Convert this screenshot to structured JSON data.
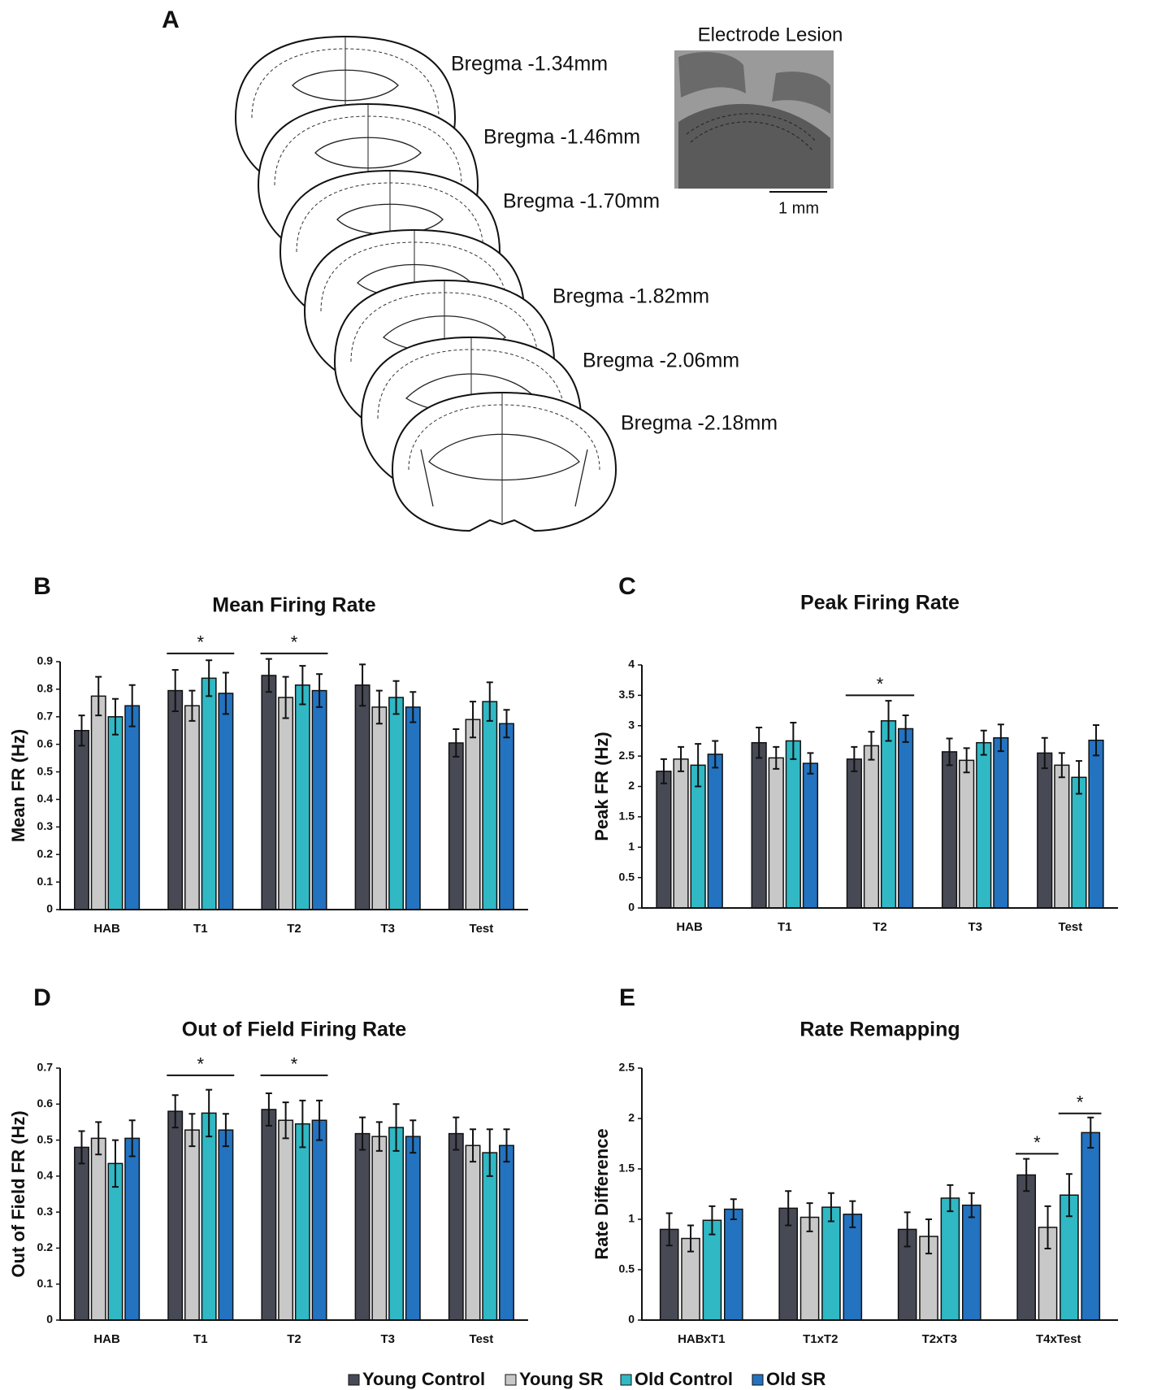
{
  "panel_a": {
    "label": "A",
    "lesion_title": "Electrode Lesion",
    "scale_label": "1 mm",
    "sections": [
      "Bregma -1.34mm",
      "Bregma -1.46mm",
      "Bregma -1.70mm",
      "Bregma -1.82mm",
      "Bregma -2.06mm",
      "Bregma -2.18mm"
    ]
  },
  "chart_data": [
    {
      "type": "bar",
      "panel_label": "B",
      "title": "Mean Firing Rate",
      "y_label": "Mean FR (Hz)",
      "categories": [
        "HAB",
        "T1",
        "T2",
        "T3",
        "Test"
      ],
      "series": [
        {
          "name": "Young Control",
          "color": "#474a55",
          "values": [
            0.65,
            0.795,
            0.85,
            0.815,
            0.605
          ],
          "errors": [
            0.055,
            0.075,
            0.06,
            0.075,
            0.05
          ]
        },
        {
          "name": "Young SR",
          "color": "#c8c8c8",
          "values": [
            0.775,
            0.74,
            0.77,
            0.735,
            0.69
          ],
          "errors": [
            0.07,
            0.055,
            0.075,
            0.06,
            0.065
          ]
        },
        {
          "name": "Old Control",
          "color": "#30b8c4",
          "values": [
            0.7,
            0.84,
            0.815,
            0.77,
            0.755
          ],
          "errors": [
            0.065,
            0.065,
            0.07,
            0.06,
            0.07
          ]
        },
        {
          "name": "Old SR",
          "color": "#2373c0",
          "values": [
            0.74,
            0.785,
            0.795,
            0.735,
            0.675
          ],
          "errors": [
            0.075,
            0.075,
            0.06,
            0.055,
            0.05
          ]
        }
      ],
      "ylim": [
        0,
        0.9
      ],
      "yticks": [
        0,
        0.1,
        0.2,
        0.3,
        0.4,
        0.5,
        0.6,
        0.7,
        0.8,
        0.9
      ],
      "annotations": [
        {
          "text": "*",
          "category": 1,
          "series": [
            0,
            3
          ],
          "y": 0.93
        },
        {
          "text": "*",
          "category": 2,
          "series": [
            0,
            3
          ],
          "y": 0.93
        }
      ]
    },
    {
      "type": "bar",
      "panel_label": "C",
      "title": "Peak Firing Rate",
      "y_label": "Peak FR (Hz)",
      "categories": [
        "HAB",
        "T1",
        "T2",
        "T3",
        "Test"
      ],
      "series": [
        {
          "color": "#474a55",
          "values": [
            2.25,
            2.72,
            2.45,
            2.57,
            2.55
          ],
          "errors": [
            0.2,
            0.25,
            0.2,
            0.22,
            0.25
          ]
        },
        {
          "color": "#c8c8c8",
          "values": [
            2.45,
            2.47,
            2.67,
            2.43,
            2.35
          ],
          "errors": [
            0.2,
            0.18,
            0.23,
            0.2,
            0.2
          ]
        },
        {
          "color": "#30b8c4",
          "values": [
            2.35,
            2.75,
            3.08,
            2.72,
            2.15
          ],
          "errors": [
            0.35,
            0.3,
            0.33,
            0.2,
            0.27
          ]
        },
        {
          "color": "#2373c0",
          "values": [
            2.53,
            2.38,
            2.95,
            2.8,
            2.76
          ],
          "errors": [
            0.22,
            0.17,
            0.22,
            0.22,
            0.25
          ]
        }
      ],
      "ylim": [
        0,
        4
      ],
      "yticks": [
        0,
        0.5,
        1,
        1.5,
        2,
        2.5,
        3,
        3.5,
        4
      ],
      "annotations": [
        {
          "text": "*",
          "category": 2,
          "series": [
            0,
            3
          ],
          "y": 3.5
        }
      ]
    },
    {
      "type": "bar",
      "panel_label": "D",
      "title": "Out of Field Firing Rate",
      "y_label": "Out of Field FR (Hz)",
      "categories": [
        "HAB",
        "T1",
        "T2",
        "T3",
        "Test"
      ],
      "series": [
        {
          "color": "#474a55",
          "values": [
            0.48,
            0.58,
            0.585,
            0.518,
            0.518
          ],
          "errors": [
            0.045,
            0.045,
            0.045,
            0.045,
            0.045
          ]
        },
        {
          "color": "#c8c8c8",
          "values": [
            0.505,
            0.528,
            0.555,
            0.51,
            0.485
          ],
          "errors": [
            0.045,
            0.045,
            0.05,
            0.04,
            0.045
          ]
        },
        {
          "color": "#30b8c4",
          "values": [
            0.435,
            0.575,
            0.545,
            0.535,
            0.465
          ],
          "errors": [
            0.065,
            0.065,
            0.065,
            0.065,
            0.065
          ]
        },
        {
          "color": "#2373c0",
          "values": [
            0.505,
            0.528,
            0.555,
            0.51,
            0.485
          ],
          "errors": [
            0.05,
            0.045,
            0.055,
            0.045,
            0.045
          ]
        }
      ],
      "ylim": [
        0,
        0.7
      ],
      "yticks": [
        0,
        0.1,
        0.2,
        0.3,
        0.4,
        0.5,
        0.6,
        0.7
      ],
      "annotations": [
        {
          "text": "*",
          "category": 1,
          "series": [
            0,
            3
          ],
          "y": 0.68
        },
        {
          "text": "*",
          "category": 2,
          "series": [
            0,
            3
          ],
          "y": 0.68
        }
      ]
    },
    {
      "type": "bar",
      "panel_label": "E",
      "title": "Rate Remapping",
      "y_label": "Rate Difference",
      "categories": [
        "HABxT1",
        "T1xT2",
        "T2xT3",
        "T4xTest"
      ],
      "series": [
        {
          "color": "#474a55",
          "values": [
            0.9,
            1.11,
            0.9,
            1.44
          ],
          "errors": [
            0.16,
            0.17,
            0.17,
            0.16
          ]
        },
        {
          "color": "#c8c8c8",
          "values": [
            0.81,
            1.02,
            0.83,
            0.92
          ],
          "errors": [
            0.13,
            0.14,
            0.17,
            0.21
          ]
        },
        {
          "color": "#30b8c4",
          "values": [
            0.99,
            1.12,
            1.21,
            1.24
          ],
          "errors": [
            0.14,
            0.14,
            0.13,
            0.21
          ]
        },
        {
          "color": "#2373c0",
          "values": [
            1.1,
            1.05,
            1.14,
            1.86
          ],
          "errors": [
            0.1,
            0.13,
            0.12,
            0.15
          ]
        }
      ],
      "ylim": [
        0,
        2.5
      ],
      "yticks": [
        0,
        0.5,
        1,
        1.5,
        2,
        2.5
      ],
      "annotations": [
        {
          "text": "*",
          "category": 3,
          "series": [
            0,
            1
          ],
          "y": 1.65
        },
        {
          "text": "*",
          "category": 3,
          "series": [
            2,
            3
          ],
          "y": 2.05
        }
      ]
    }
  ]
}
